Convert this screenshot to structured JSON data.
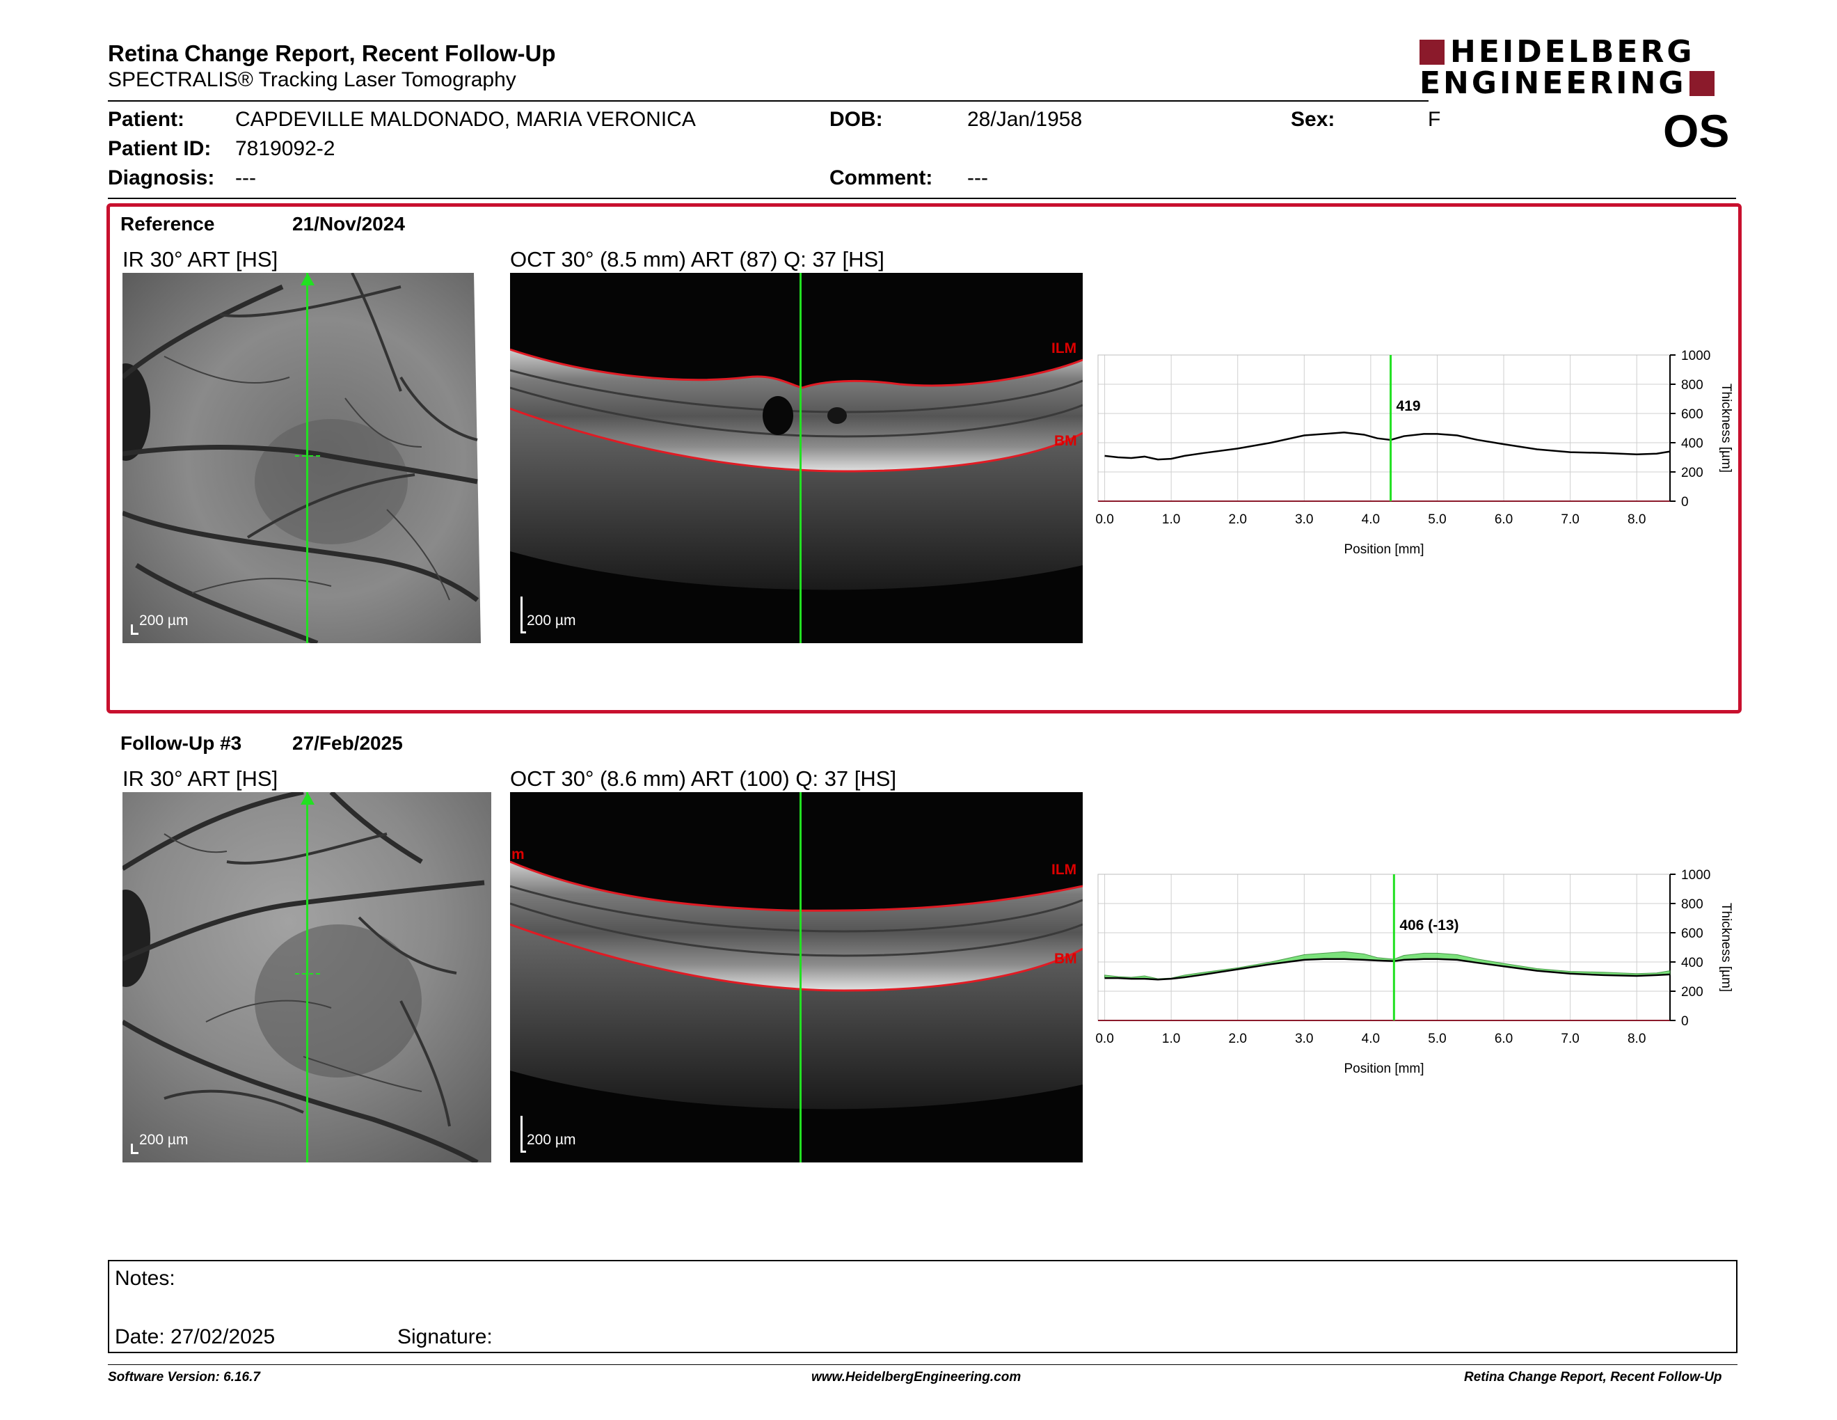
{
  "header": {
    "title": "Retina Change Report, Recent Follow-Up",
    "subtitle": "SPECTRALIS® Tracking Laser Tomography",
    "logo_line1": "HEIDELBERG",
    "logo_line2": "ENGINEERING",
    "eye": "OS"
  },
  "patient": {
    "patient_label": "Patient:",
    "patient_value": "CAPDEVILLE MALDONADO, MARIA VERONICA",
    "id_label": "Patient ID:",
    "id_value": "7819092-2",
    "diagnosis_label": "Diagnosis:",
    "diagnosis_value": "---",
    "dob_label": "DOB:",
    "dob_value": "28/Jan/1958",
    "comment_label": "Comment:",
    "comment_value": "---",
    "sex_label": "Sex:",
    "sex_value": "F"
  },
  "reference": {
    "label": "Reference",
    "date": "21/Nov/2024",
    "ir_title": "IR 30° ART [HS]",
    "oct_title": "OCT 30° (8.5 mm) ART (87) Q: 37 [HS]",
    "scale": "200 µm",
    "ilm": "ILM",
    "bm": "BM"
  },
  "followup": {
    "label": "Follow-Up #3",
    "date": "27/Feb/2025",
    "ir_title": "IR 30° ART [HS]",
    "oct_title": "OCT 30° (8.6 mm) ART (100) Q: 37 [HS]",
    "scale": "200 µm",
    "ilm": "ILM",
    "bm": "BM",
    "edge_mark": "m"
  },
  "notes": {
    "label": "Notes:",
    "date_label": "Date: 27/02/2025",
    "signature_label": "Signature:"
  },
  "footer": {
    "left": "Software Version: 6.16.7",
    "center": "www.HeidelbergEngineering.com",
    "right": "Retina Change Report, Recent Follow-Up"
  },
  "colors": {
    "brand": "#8b1a2b",
    "reference_frame": "#c8102e",
    "scan_line": "#22e022",
    "diff_fill": "#66dd66"
  },
  "chart_data": [
    {
      "type": "line",
      "xlabel": "Position [mm]",
      "ylabel": "Thickness [µm]",
      "xlim": [
        -0.1,
        8.5
      ],
      "ylim": [
        0,
        1000
      ],
      "xticks": [
        "0.0",
        "1.0",
        "2.0",
        "3.0",
        "4.0",
        "5.0",
        "6.0",
        "7.0",
        "8.0"
      ],
      "yticks": [
        "0",
        "200",
        "400",
        "600",
        "800",
        "1000"
      ],
      "grid": true,
      "cursor_x": 4.3,
      "cursor_label": "419",
      "series": [
        {
          "x": [
            0.0,
            0.2,
            0.4,
            0.6,
            0.8,
            1.0,
            1.2,
            1.5,
            2.0,
            2.5,
            3.0,
            3.3,
            3.6,
            3.9,
            4.1,
            4.3,
            4.5,
            4.8,
            5.0,
            5.3,
            5.6,
            6.0,
            6.5,
            7.0,
            7.5,
            8.0,
            8.3,
            8.5
          ],
          "values": [
            310,
            300,
            295,
            305,
            285,
            290,
            310,
            330,
            360,
            400,
            450,
            460,
            470,
            455,
            430,
            419,
            445,
            460,
            460,
            450,
            420,
            390,
            355,
            335,
            330,
            320,
            325,
            340
          ]
        }
      ]
    },
    {
      "type": "area",
      "xlabel": "Position [mm]",
      "ylabel": "Thickness [µm]",
      "xlim": [
        -0.1,
        8.5
      ],
      "ylim": [
        0,
        1000
      ],
      "xticks": [
        "0.0",
        "1.0",
        "2.0",
        "3.0",
        "4.0",
        "5.0",
        "6.0",
        "7.0",
        "8.0"
      ],
      "yticks": [
        "0",
        "200",
        "400",
        "600",
        "800",
        "1000"
      ],
      "grid": true,
      "cursor_x": 4.35,
      "cursor_label": "406 (-13)",
      "series": [
        {
          "x": [
            0.0,
            0.2,
            0.4,
            0.6,
            0.8,
            1.0,
            1.2,
            1.5,
            2.0,
            2.5,
            3.0,
            3.3,
            3.6,
            3.9,
            4.1,
            4.35,
            4.5,
            4.8,
            5.0,
            5.3,
            5.6,
            6.0,
            6.5,
            7.0,
            7.5,
            8.0,
            8.3,
            8.5
          ],
          "values": [
            290,
            290,
            285,
            285,
            280,
            285,
            295,
            315,
            350,
            385,
            415,
            420,
            420,
            415,
            410,
            406,
            415,
            420,
            420,
            415,
            395,
            370,
            340,
            320,
            310,
            305,
            310,
            315
          ]
        },
        {
          "x": [
            0.0,
            0.2,
            0.4,
            0.6,
            0.8,
            1.0,
            1.2,
            1.5,
            2.0,
            2.5,
            3.0,
            3.3,
            3.6,
            3.9,
            4.1,
            4.35,
            4.5,
            4.8,
            5.0,
            5.3,
            5.6,
            6.0,
            6.5,
            7.0,
            7.5,
            8.0,
            8.3,
            8.5
          ],
          "values": [
            310,
            300,
            295,
            305,
            285,
            290,
            310,
            330,
            360,
            400,
            450,
            460,
            470,
            455,
            430,
            419,
            445,
            460,
            460,
            450,
            420,
            390,
            355,
            335,
            330,
            320,
            325,
            340
          ]
        }
      ]
    }
  ]
}
